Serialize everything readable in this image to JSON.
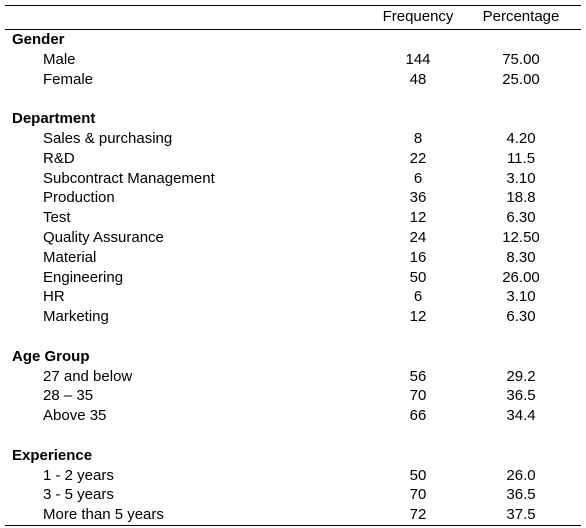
{
  "columns": {
    "frequency": "Frequency",
    "percentage": "Percentage"
  },
  "sections": [
    {
      "title": "Gender",
      "rows": [
        {
          "label": "Male",
          "frequency": "144",
          "percentage": "75.00"
        },
        {
          "label": "Female",
          "frequency": "48",
          "percentage": "25.00"
        }
      ]
    },
    {
      "title": "Department",
      "rows": [
        {
          "label": "Sales & purchasing",
          "frequency": "8",
          "percentage": "4.20"
        },
        {
          "label": "R&D",
          "frequency": "22",
          "percentage": "11.5"
        },
        {
          "label": "Subcontract Management",
          "frequency": "6",
          "percentage": "3.10"
        },
        {
          "label": "Production",
          "frequency": "36",
          "percentage": "18.8"
        },
        {
          "label": "Test",
          "frequency": "12",
          "percentage": "6.30"
        },
        {
          "label": "Quality Assurance",
          "frequency": "24",
          "percentage": "12.50"
        },
        {
          "label": "Material",
          "frequency": "16",
          "percentage": "8.30"
        },
        {
          "label": "Engineering",
          "frequency": "50",
          "percentage": "26.00"
        },
        {
          "label": "HR",
          "frequency": "6",
          "percentage": "3.10"
        },
        {
          "label": "Marketing",
          "frequency": "12",
          "percentage": "6.30"
        }
      ]
    },
    {
      "title": "Age Group",
      "rows": [
        {
          "label": "27 and below",
          "frequency": "56",
          "percentage": "29.2"
        },
        {
          "label": "28 – 35",
          "frequency": "70",
          "percentage": "36.5"
        },
        {
          "label": "Above 35",
          "frequency": "66",
          "percentage": "34.4"
        }
      ]
    },
    {
      "title": "Experience",
      "rows": [
        {
          "label": "1 - 2 years",
          "frequency": "50",
          "percentage": "26.0"
        },
        {
          "label": "3 - 5 years",
          "frequency": "70",
          "percentage": "36.5"
        },
        {
          "label": "More than 5 years",
          "frequency": "72",
          "percentage": "37.5"
        }
      ]
    }
  ]
}
